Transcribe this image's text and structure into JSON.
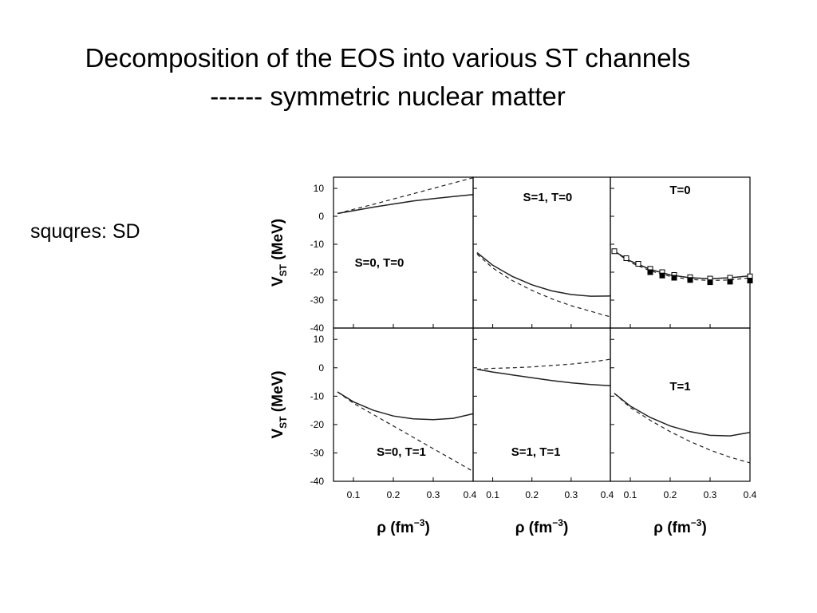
{
  "slide": {
    "title_line1": "Decomposition of the EOS into various ST channels",
    "title_line2": "------  symmetric nuclear matter",
    "side_note": "squqres: SD"
  },
  "chart_data": {
    "type": "line",
    "grid": false,
    "layout": "2 rows x 3 columns of panels sharing axes",
    "x_axis": {
      "label_symbol": "ρ",
      "label_unit": " (fm",
      "label_exp": "−3",
      "label_close": ")",
      "ticks": [
        0.1,
        0.2,
        0.3,
        0.4
      ],
      "tick_labels": [
        "0.1",
        "0.2",
        "0.3",
        "0.4"
      ],
      "range": [
        0.05,
        0.4
      ]
    },
    "y_axis": {
      "label_main": "V",
      "label_sub": "ST",
      "label_unit": " (MeV)",
      "ticks": [
        10,
        0,
        -10,
        -20,
        -30,
        -40
      ],
      "tick_labels": [
        "10",
        "0",
        "-10",
        "-20",
        "-30",
        "-40"
      ],
      "range": [
        -40,
        14
      ]
    },
    "panels": [
      {
        "label": "S=0, T=0",
        "label_pos": {
          "x": 0.165,
          "y": -18
        },
        "series": [
          {
            "style": "solid",
            "x": [
              0.06,
              0.1,
              0.15,
              0.2,
              0.25,
              0.3,
              0.35,
              0.4
            ],
            "y": [
              1,
              2,
              3.3,
              4.4,
              5.5,
              6.3,
              7.1,
              7.8
            ]
          },
          {
            "style": "dashed",
            "x": [
              0.06,
              0.1,
              0.15,
              0.2,
              0.25,
              0.3,
              0.35,
              0.4
            ],
            "y": [
              1,
              2.5,
              4.3,
              6.2,
              8.1,
              10,
              11.9,
              13.8
            ]
          }
        ]
      },
      {
        "label": "S=1, T=0",
        "label_pos": {
          "x": 0.24,
          "y": 5.5
        },
        "series": [
          {
            "style": "solid",
            "x": [
              0.06,
              0.1,
              0.15,
              0.2,
              0.25,
              0.3,
              0.35,
              0.4
            ],
            "y": [
              -13,
              -17.5,
              -21.5,
              -24.5,
              -26.7,
              -28,
              -28.6,
              -28.5
            ]
          },
          {
            "style": "dashed",
            "x": [
              0.06,
              0.1,
              0.15,
              0.2,
              0.25,
              0.3,
              0.35,
              0.4
            ],
            "y": [
              -13.5,
              -18.5,
              -23,
              -26.5,
              -29.5,
              -32,
              -34,
              -36
            ]
          }
        ]
      },
      {
        "label": "T=0",
        "label_pos": {
          "x": 0.225,
          "y": 8
        },
        "series": [
          {
            "style": "solid",
            "x": [
              0.06,
              0.1,
              0.15,
              0.2,
              0.25,
              0.3,
              0.35,
              0.4
            ],
            "y": [
              -12.5,
              -16,
              -19,
              -21,
              -22,
              -22.3,
              -22,
              -21.3
            ]
          },
          {
            "style": "dashed",
            "x": [
              0.06,
              0.1,
              0.15,
              0.2,
              0.25,
              0.3,
              0.35,
              0.4
            ],
            "y": [
              -12.5,
              -16.5,
              -19.5,
              -21.5,
              -22.6,
              -23,
              -22.8,
              -22
            ]
          },
          {
            "style": "markers-open",
            "x": [
              0.06,
              0.09,
              0.12,
              0.15,
              0.18,
              0.21,
              0.25,
              0.3,
              0.35,
              0.4
            ],
            "y": [
              -12.5,
              -15,
              -17,
              -18.8,
              -20,
              -21,
              -21.8,
              -22.3,
              -22,
              -21.5
            ]
          },
          {
            "style": "markers-filled",
            "x": [
              0.15,
              0.18,
              0.21,
              0.25,
              0.3,
              0.35,
              0.4
            ],
            "y": [
              -20,
              -21.2,
              -22,
              -22.8,
              -23.6,
              -23.4,
              -23
            ]
          }
        ]
      },
      {
        "label": "S=0, T=1",
        "label_pos": {
          "x": 0.22,
          "y": -31
        },
        "series": [
          {
            "style": "solid",
            "x": [
              0.06,
              0.1,
              0.15,
              0.2,
              0.25,
              0.3,
              0.35,
              0.4
            ],
            "y": [
              -8.5,
              -12,
              -15,
              -17,
              -18,
              -18.3,
              -17.8,
              -16.2
            ]
          },
          {
            "style": "dashed",
            "x": [
              0.06,
              0.1,
              0.15,
              0.2,
              0.25,
              0.3,
              0.35,
              0.4
            ],
            "y": [
              -8.5,
              -12.5,
              -16.5,
              -20.5,
              -24.5,
              -28.5,
              -32.5,
              -36.5
            ]
          }
        ]
      },
      {
        "label": "S=1, T=1",
        "label_pos": {
          "x": 0.21,
          "y": -31
        },
        "series": [
          {
            "style": "solid",
            "x": [
              0.06,
              0.1,
              0.15,
              0.2,
              0.25,
              0.3,
              0.35,
              0.4
            ],
            "y": [
              -0.5,
              -1.5,
              -2.5,
              -3.5,
              -4.5,
              -5.3,
              -5.9,
              -6.3
            ]
          },
          {
            "style": "dashed",
            "x": [
              0.06,
              0.1,
              0.15,
              0.2,
              0.25,
              0.3,
              0.35,
              0.4
            ],
            "y": [
              -0.5,
              -0.2,
              0,
              0.3,
              0.8,
              1.3,
              2,
              3
            ]
          }
        ]
      },
      {
        "label": "T=1",
        "label_pos": {
          "x": 0.225,
          "y": -8
        },
        "series": [
          {
            "style": "solid",
            "x": [
              0.06,
              0.1,
              0.15,
              0.2,
              0.25,
              0.3,
              0.35,
              0.4
            ],
            "y": [
              -9,
              -13.5,
              -17.5,
              -20.5,
              -22.5,
              -23.8,
              -24,
              -22.8
            ]
          },
          {
            "style": "dashed",
            "x": [
              0.06,
              0.1,
              0.15,
              0.2,
              0.25,
              0.3,
              0.35,
              0.4
            ],
            "y": [
              -9,
              -14,
              -18.5,
              -22.5,
              -26,
              -29,
              -31.5,
              -33.5
            ]
          }
        ]
      }
    ]
  }
}
